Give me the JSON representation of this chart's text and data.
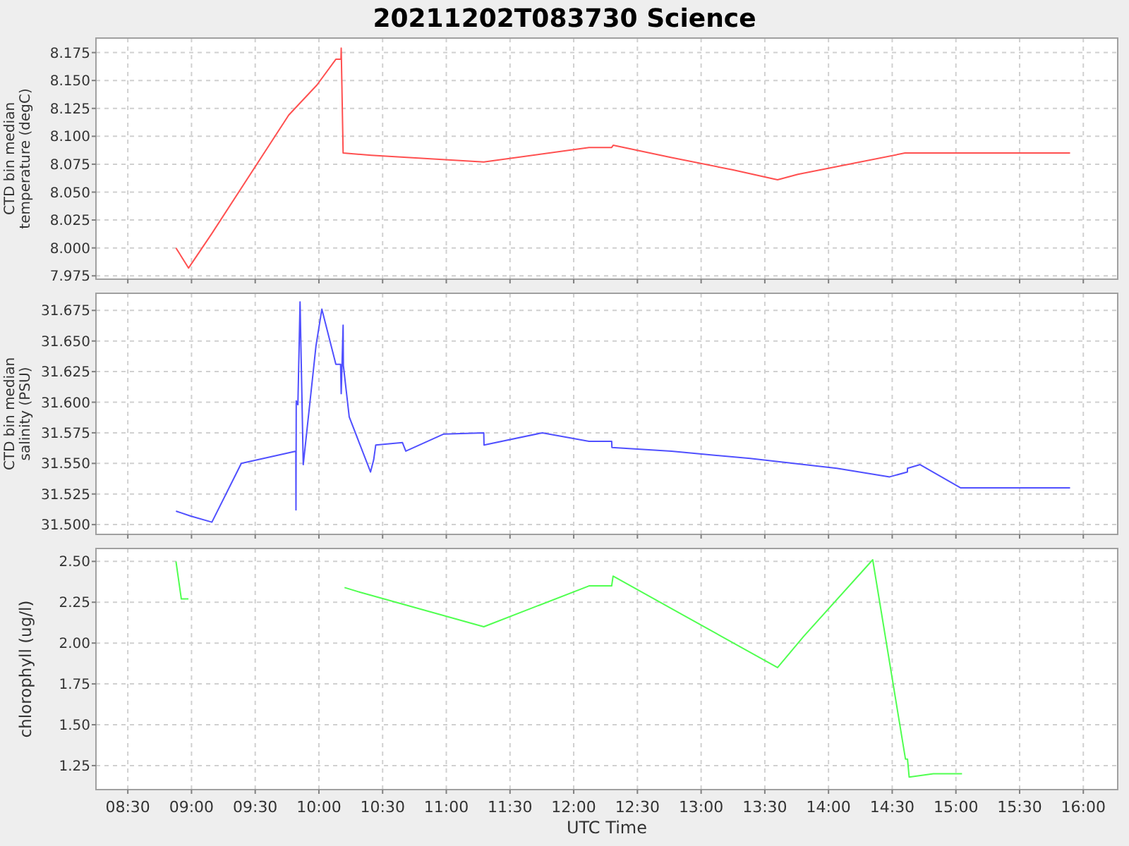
{
  "chart_data": [
    {
      "type": "line",
      "title": "20211202T083730 Science",
      "ylabel": "CTD bin median temperature (degC)",
      "tick_labels": "y",
      "grid": true,
      "xlim": [
        8.25,
        16.27
      ],
      "xticks": [
        8.5,
        9,
        9.5,
        10,
        10.5,
        11,
        11.5,
        12,
        12.5,
        13,
        13.5,
        14,
        14.5,
        15,
        15.5,
        16
      ],
      "ylim": [
        7.972,
        8.188
      ],
      "yticks": [
        7.975,
        {
          "value": 8,
          "label": "8.000"
        },
        8.025,
        {
          "value": 8.05,
          "label": "8.050"
        },
        8.075,
        {
          "value": 8.1,
          "label": "8.100"
        },
        8.125,
        {
          "value": 8.15,
          "label": "8.150"
        },
        8.175
      ],
      "series": [
        {
          "color": "#ff5050",
          "x": [
            8.878,
            8.977,
            9.16,
            9.763,
            9.985,
            10.133,
            10.173,
            10.175,
            10.19,
            10.41,
            11.294,
            12.12,
            12.298,
            12.31,
            12.768,
            13.245,
            13.6,
            13.76,
            14.6,
            15.896
          ],
          "values": [
            8.0,
            7.982,
            8.013,
            8.119,
            8.146,
            8.169,
            8.169,
            8.179,
            8.085,
            8.083,
            8.077,
            8.09,
            8.09,
            8.092,
            8.081,
            8.07,
            8.061,
            8.066,
            8.085,
            8.085
          ]
        }
      ]
    },
    {
      "type": "line",
      "ylabel": "CTD bin median salinity (PSU)",
      "tick_labels": "y",
      "grid": true,
      "xlim": [
        8.25,
        16.27
      ],
      "xticks": [
        8.5,
        9,
        9.5,
        10,
        10.5,
        11,
        11.5,
        12,
        12.5,
        13,
        13.5,
        14,
        14.5,
        15,
        15.5,
        16
      ],
      "ylim": [
        31.492,
        31.689
      ],
      "yticks": [
        {
          "value": 31.5,
          "label": "31.500"
        },
        31.525,
        {
          "value": 31.55,
          "label": "31.550"
        },
        31.575,
        {
          "value": 31.6,
          "label": "31.600"
        },
        31.625,
        {
          "value": 31.65,
          "label": "31.650"
        },
        31.675
      ],
      "series": [
        {
          "color": "#5050ff",
          "x": [
            8.878,
            8.993,
            9.16,
            9.391,
            9.819,
            9.82,
            9.822,
            9.835,
            9.852,
            9.877,
            9.977,
            10.023,
            10.133,
            10.17,
            10.175,
            10.19,
            10.192,
            10.238,
            10.405,
            10.43,
            10.446,
            10.656,
            10.682,
            10.98,
            11.294,
            11.296,
            11.754,
            12.12,
            12.298,
            12.3,
            12.768,
            13.385,
            14.065,
            14.48,
            14.619,
            14.62,
            14.719,
            15.038,
            15.896
          ],
          "values": [
            31.511,
            31.507,
            31.502,
            31.55,
            31.56,
            31.512,
            31.601,
            31.598,
            31.682,
            31.549,
            31.646,
            31.676,
            31.631,
            31.631,
            31.607,
            31.663,
            31.63,
            31.588,
            31.543,
            31.553,
            31.565,
            31.567,
            31.56,
            31.574,
            31.575,
            31.565,
            31.575,
            31.568,
            31.568,
            31.563,
            31.56,
            31.554,
            31.546,
            31.539,
            31.543,
            31.546,
            31.549,
            31.53,
            31.53
          ]
        }
      ]
    },
    {
      "type": "line",
      "ylabel": "chlorophyll (ug/l)",
      "xlabel": "UTC Time",
      "grid": true,
      "xlim": [
        8.25,
        16.27
      ],
      "xticks": [
        {
          "value": 8.5,
          "label": "08:30"
        },
        {
          "value": 9,
          "label": "09:00"
        },
        {
          "value": 9.5,
          "label": "09:30"
        },
        {
          "value": 10,
          "label": "10:00"
        },
        {
          "value": 10.5,
          "label": "10:30"
        },
        {
          "value": 11,
          "label": "11:00"
        },
        {
          "value": 11.5,
          "label": "11:30"
        },
        {
          "value": 12,
          "label": "12:00"
        },
        {
          "value": 12.5,
          "label": "12:30"
        },
        {
          "value": 13,
          "label": "13:00"
        },
        {
          "value": 13.5,
          "label": "13:30"
        },
        {
          "value": 14,
          "label": "14:00"
        },
        {
          "value": 14.5,
          "label": "14:30"
        },
        {
          "value": 15,
          "label": "15:00"
        },
        {
          "value": 15.5,
          "label": "15:30"
        },
        {
          "value": 16,
          "label": "16:00"
        }
      ],
      "ylim": [
        1.103,
        2.579
      ],
      "yticks": [
        {
          "value": 1.25,
          "label": "1.25"
        },
        {
          "value": 1.5,
          "label": "1.50"
        },
        {
          "value": 1.75,
          "label": "1.75"
        },
        {
          "value": 2,
          "label": "2.00"
        },
        {
          "value": 2.25,
          "label": "2.25"
        },
        {
          "value": 2.5,
          "label": "2.50"
        }
      ],
      "series": [
        {
          "color": "#50ff50",
          "x": [
            8.878,
            8.92,
            8.976,
            9.5,
            10.201,
            10.327,
            11.294,
            12.12,
            12.298,
            12.309,
            12.863,
            13.6,
            13.804,
            14.347,
            14.604,
            14.62,
            14.633,
            14.823,
            15.048
          ],
          "values": [
            2.5,
            2.27,
            2.27,
            null,
            2.34,
            2.31,
            2.1,
            2.35,
            2.35,
            2.41,
            2.17,
            1.85,
            2.04,
            2.51,
            1.29,
            1.29,
            1.18,
            1.2,
            1.2
          ]
        }
      ]
    }
  ]
}
